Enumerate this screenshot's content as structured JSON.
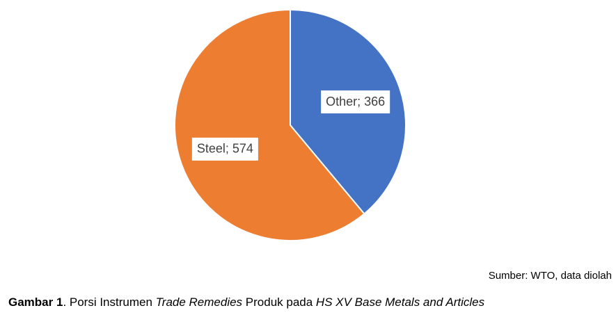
{
  "chart_data": {
    "type": "pie",
    "categories": [
      "Other",
      "Steel"
    ],
    "values": [
      366,
      574
    ],
    "value_labels": [
      "Other; 366",
      "Steel; 574"
    ],
    "colors": [
      "#4472c4",
      "#ed7d31"
    ]
  },
  "source": "Sumber: WTO, data diolah",
  "caption": [
    "Gambar 1",
    ". Porsi Instrumen ",
    "Trade Remedies",
    " Produk pada ",
    "HS XV Base Metals and Articles"
  ]
}
